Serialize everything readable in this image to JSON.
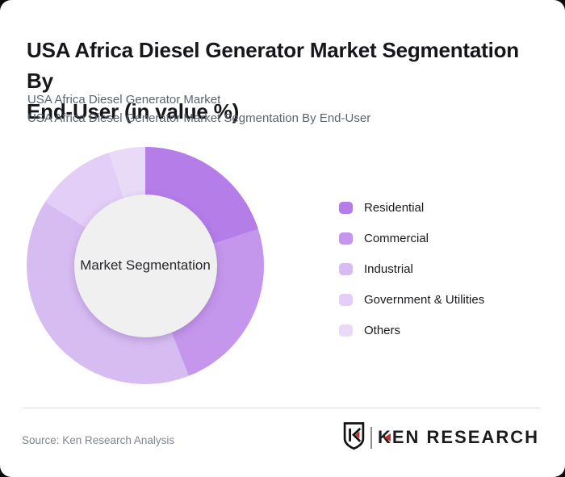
{
  "header": {
    "title_line1": "USA Africa Diesel Generator Market Segmentation By",
    "title_line2": "End-User (in value %)",
    "subtitle_line1": "USA Africa Diesel Generator Market",
    "subtitle_line2": "USA Africa Diesel Generator Market Segmentation By End-User"
  },
  "chart_data": {
    "type": "pie",
    "subtype": "donut",
    "title": "USA Africa Diesel Generator Market Segmentation By End-User (in value %)",
    "center_label": "Market Segmentation",
    "unit": "%",
    "start_angle_deg": 0,
    "direction": "clockwise",
    "legend_position": "right",
    "hole_fill": "#f0f0f1",
    "segments": [
      {
        "label": "Residential",
        "value": 20,
        "color": "#b47de8"
      },
      {
        "label": "Commercial",
        "value": 24,
        "color": "#c496ec"
      },
      {
        "label": "Industrial",
        "value": 40,
        "color": "#d7bcf2"
      },
      {
        "label": "Government & Utilities",
        "value": 11,
        "color": "#e2cef6"
      },
      {
        "label": "Others",
        "value": 5,
        "color": "#e9daf8"
      }
    ]
  },
  "footer": {
    "source": "Source: Ken Research Analysis",
    "brand": {
      "text_k": "K",
      "text_rest": "EN RESEARCH",
      "accent_red": "#c4302c"
    }
  }
}
